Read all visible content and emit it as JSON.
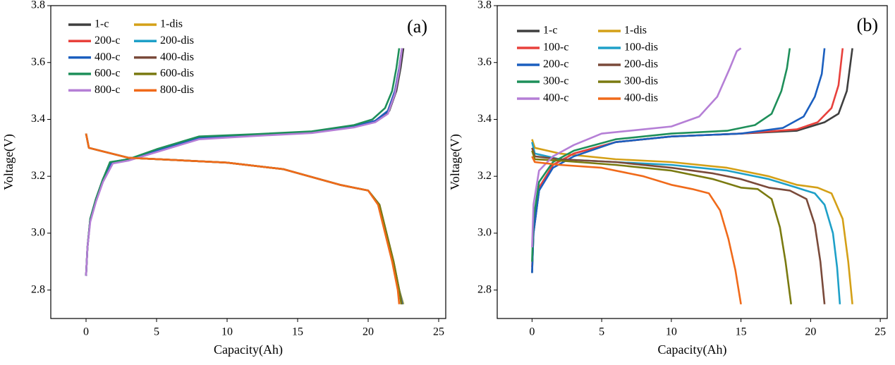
{
  "chart_data": [
    {
      "type": "line",
      "panel_label": "(a)",
      "x_label": "Capacity(Ah)",
      "y_label": "Voltage(V)",
      "xlim": [
        -2.5,
        25.5
      ],
      "ylim": [
        2.7,
        3.8
      ],
      "xticks": [
        0,
        5,
        10,
        15,
        20,
        25
      ],
      "yticks": [
        2.8,
        {
          "value": 3,
          "label": "3.0"
        },
        3.2,
        3.4,
        3.6,
        3.8
      ],
      "legend": "upper left",
      "series": [
        {
          "name": "1-c",
          "color": "#3f3f3f",
          "x": [
            0,
            0.1,
            0.3,
            0.7,
            1.2,
            1.8,
            3,
            5,
            8,
            12,
            16,
            19,
            20.5,
            21.5,
            22,
            22.3,
            22.5
          ],
          "values": [
            2.85,
            2.95,
            3.05,
            3.12,
            3.19,
            3.25,
            3.26,
            3.29,
            3.335,
            3.345,
            3.355,
            3.375,
            3.395,
            3.43,
            3.5,
            3.58,
            3.65
          ]
        },
        {
          "name": "1-dis",
          "color": "#d4a017",
          "x": [
            0,
            0.2,
            1,
            3,
            6,
            10,
            14,
            18,
            20,
            20.8,
            21.3,
            21.8,
            22.2,
            22.5
          ],
          "values": [
            3.35,
            3.3,
            3.29,
            3.265,
            3.258,
            3.248,
            3.225,
            3.17,
            3.15,
            3.1,
            3.0,
            2.9,
            2.8,
            2.75
          ]
        },
        {
          "name": "200-c",
          "color": "#e8413c",
          "x": [
            0,
            0.1,
            0.3,
            0.7,
            1.2,
            1.8,
            3,
            5,
            8,
            12,
            16,
            19,
            20.5,
            21.4,
            21.9,
            22.2,
            22.4
          ],
          "values": [
            2.85,
            2.95,
            3.05,
            3.12,
            3.19,
            3.25,
            3.26,
            3.29,
            3.335,
            3.345,
            3.355,
            3.375,
            3.395,
            3.43,
            3.5,
            3.58,
            3.65
          ]
        },
        {
          "name": "200-dis",
          "color": "#1ea0c8",
          "x": [
            0,
            0.2,
            1,
            3,
            6,
            10,
            14,
            18,
            20,
            20.8,
            21.3,
            21.8,
            22.2,
            22.45
          ],
          "values": [
            3.35,
            3.3,
            3.29,
            3.265,
            3.258,
            3.248,
            3.225,
            3.17,
            3.15,
            3.1,
            3.0,
            2.9,
            2.8,
            2.75
          ]
        },
        {
          "name": "400-c",
          "color": "#1b5fbf",
          "x": [
            0,
            0.1,
            0.3,
            0.7,
            1.2,
            1.8,
            3,
            5,
            8,
            12,
            16,
            19,
            20.5,
            21.4,
            21.9,
            22.2,
            22.4
          ],
          "values": [
            2.85,
            2.95,
            3.05,
            3.12,
            3.19,
            3.25,
            3.26,
            3.29,
            3.335,
            3.345,
            3.355,
            3.375,
            3.395,
            3.43,
            3.5,
            3.58,
            3.65
          ]
        },
        {
          "name": "400-dis",
          "color": "#7a4a3a",
          "x": [
            0,
            0.2,
            1,
            3,
            6,
            10,
            14,
            18,
            20,
            20.8,
            21.3,
            21.8,
            22.2,
            22.4
          ],
          "values": [
            3.35,
            3.3,
            3.29,
            3.265,
            3.258,
            3.248,
            3.225,
            3.17,
            3.15,
            3.1,
            3.0,
            2.9,
            2.8,
            2.75
          ]
        },
        {
          "name": "600-c",
          "color": "#1e8f5a",
          "x": [
            0,
            0.1,
            0.3,
            0.7,
            1.2,
            1.7,
            3,
            5,
            8,
            12,
            16,
            19,
            20.3,
            21.2,
            21.7,
            22,
            22.2
          ],
          "values": [
            2.85,
            2.95,
            3.05,
            3.12,
            3.19,
            3.25,
            3.26,
            3.295,
            3.34,
            3.348,
            3.358,
            3.38,
            3.4,
            3.44,
            3.5,
            3.58,
            3.65
          ]
        },
        {
          "name": "600-dis",
          "color": "#7a7a10",
          "x": [
            0,
            0.2,
            1,
            3,
            6,
            10,
            14,
            18,
            20,
            20.8,
            21.3,
            21.8,
            22.2,
            22.35
          ],
          "values": [
            3.35,
            3.3,
            3.29,
            3.265,
            3.258,
            3.248,
            3.225,
            3.17,
            3.15,
            3.1,
            3.0,
            2.9,
            2.8,
            2.75
          ]
        },
        {
          "name": "800-c",
          "color": "#b57fd6",
          "x": [
            0,
            0.1,
            0.3,
            0.7,
            1.2,
            1.9,
            3,
            5,
            8,
            12,
            16,
            19,
            20.5,
            21.4,
            21.9,
            22.2,
            22.4
          ],
          "values": [
            2.85,
            2.95,
            3.04,
            3.11,
            3.18,
            3.245,
            3.255,
            3.285,
            3.33,
            3.342,
            3.352,
            3.372,
            3.39,
            3.42,
            3.49,
            3.57,
            3.65
          ]
        },
        {
          "name": "800-dis",
          "color": "#f06a1a",
          "x": [
            0,
            0.2,
            1,
            3,
            6,
            10,
            14,
            18,
            20,
            20.7,
            21.2,
            21.7,
            22.1,
            22.2
          ],
          "values": [
            3.35,
            3.3,
            3.29,
            3.265,
            3.258,
            3.248,
            3.225,
            3.17,
            3.15,
            3.1,
            3.0,
            2.9,
            2.8,
            2.75
          ]
        }
      ]
    },
    {
      "type": "line",
      "panel_label": "(b)",
      "x_label": "Capacity(Ah)",
      "y_label": "Voltage(V)",
      "xlim": [
        -2.5,
        25.5
      ],
      "ylim": [
        2.7,
        3.8
      ],
      "xticks": [
        0,
        5,
        10,
        15,
        20,
        25
      ],
      "yticks": [
        2.8,
        {
          "value": 3,
          "label": "3.0"
        },
        3.2,
        3.4,
        3.6,
        3.8
      ],
      "legend": "upper left",
      "series": [
        {
          "name": "1-c",
          "color": "#3f3f3f",
          "x": [
            0,
            0.1,
            0.5,
            1.5,
            3,
            6,
            10,
            15,
            19,
            21,
            22,
            22.6,
            23
          ],
          "values": [
            2.86,
            3.0,
            3.15,
            3.24,
            3.28,
            3.32,
            3.34,
            3.35,
            3.36,
            3.39,
            3.42,
            3.5,
            3.65
          ]
        },
        {
          "name": "1-dis",
          "color": "#d4a017",
          "x": [
            0,
            0.2,
            2,
            6,
            10,
            14,
            17,
            19,
            20.5,
            21.5,
            22.3,
            22.7,
            23
          ],
          "values": [
            3.33,
            3.3,
            3.28,
            3.26,
            3.25,
            3.23,
            3.2,
            3.17,
            3.16,
            3.14,
            3.05,
            2.9,
            2.75
          ]
        },
        {
          "name": "100-c",
          "color": "#e8413c",
          "x": [
            0,
            0.1,
            0.5,
            1.5,
            3,
            6,
            10,
            15,
            19,
            20.5,
            21.5,
            22,
            22.3
          ],
          "values": [
            2.88,
            3.02,
            3.16,
            3.24,
            3.28,
            3.32,
            3.34,
            3.35,
            3.365,
            3.39,
            3.44,
            3.52,
            3.65
          ]
        },
        {
          "name": "100-dis",
          "color": "#1ea0c8",
          "x": [
            0,
            0.2,
            2,
            6,
            10,
            14,
            17,
            19,
            20.3,
            21,
            21.6,
            21.9,
            22.1
          ],
          "values": [
            3.32,
            3.28,
            3.26,
            3.25,
            3.24,
            3.22,
            3.19,
            3.16,
            3.14,
            3.1,
            3.0,
            2.88,
            2.75
          ]
        },
        {
          "name": "200-c",
          "color": "#1b5fbf",
          "x": [
            0,
            0.1,
            0.5,
            1.5,
            3,
            6,
            10,
            15,
            18,
            19.5,
            20.3,
            20.8,
            21
          ],
          "values": [
            2.86,
            3.0,
            3.15,
            3.23,
            3.27,
            3.32,
            3.34,
            3.35,
            3.37,
            3.41,
            3.48,
            3.56,
            3.65
          ]
        },
        {
          "name": "200-dis",
          "color": "#7a4a3a",
          "x": [
            0,
            0.2,
            2,
            6,
            10,
            13,
            15,
            17,
            18.5,
            19.7,
            20.3,
            20.7,
            21
          ],
          "values": [
            3.3,
            3.27,
            3.26,
            3.25,
            3.23,
            3.21,
            3.19,
            3.16,
            3.15,
            3.12,
            3.03,
            2.9,
            2.75
          ]
        },
        {
          "name": "300-c",
          "color": "#1e8f5a",
          "x": [
            0,
            0.1,
            0.5,
            1.5,
            3,
            6,
            10,
            14,
            16,
            17.2,
            17.9,
            18.3,
            18.5
          ],
          "values": [
            2.9,
            3.05,
            3.18,
            3.25,
            3.29,
            3.33,
            3.35,
            3.36,
            3.38,
            3.42,
            3.5,
            3.58,
            3.65
          ]
        },
        {
          "name": "300-dis",
          "color": "#7a7a10",
          "x": [
            0,
            0.2,
            2,
            6,
            10,
            13,
            15,
            16.2,
            17.2,
            17.8,
            18.2,
            18.6
          ],
          "values": [
            3.29,
            3.26,
            3.255,
            3.24,
            3.22,
            3.19,
            3.16,
            3.155,
            3.12,
            3.02,
            2.9,
            2.75
          ]
        },
        {
          "name": "400-c",
          "color": "#b57fd6",
          "x": [
            0,
            0.1,
            0.5,
            1.5,
            3,
            5,
            8,
            10,
            12,
            13.3,
            14.2,
            14.7,
            15
          ],
          "values": [
            2.95,
            3.1,
            3.22,
            3.27,
            3.31,
            3.35,
            3.365,
            3.375,
            3.41,
            3.48,
            3.58,
            3.64,
            3.65
          ]
        },
        {
          "name": "400-dis",
          "color": "#f06a1a",
          "x": [
            0,
            0.2,
            2,
            5,
            8,
            10,
            11.5,
            12.7,
            13.5,
            14.1,
            14.6,
            15
          ],
          "values": [
            3.27,
            3.25,
            3.24,
            3.23,
            3.2,
            3.17,
            3.155,
            3.14,
            3.08,
            2.98,
            2.87,
            2.75
          ]
        }
      ]
    }
  ]
}
